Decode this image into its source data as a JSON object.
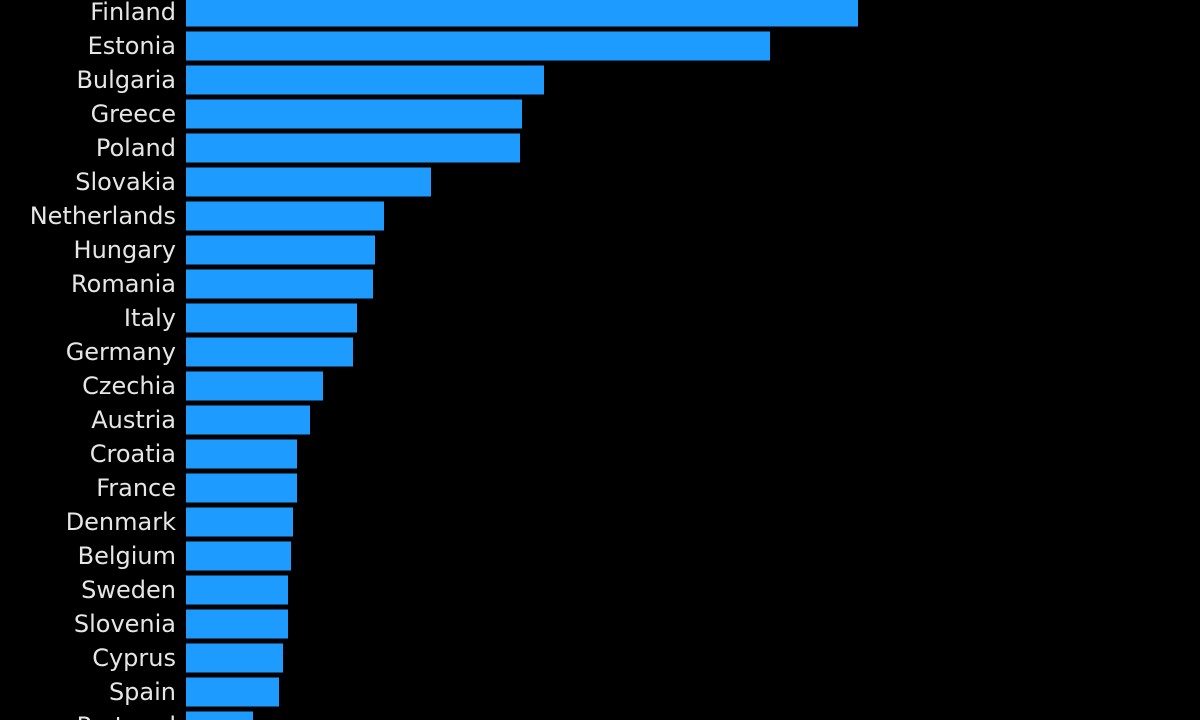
{
  "colors": {
    "background": "#000000",
    "bar": "#1e9bff",
    "label": "#e6e6e6"
  },
  "chart_data": {
    "type": "bar",
    "orientation": "horizontal",
    "categories": [
      "Finland",
      "Estonia",
      "Bulgaria",
      "Greece",
      "Poland",
      "Slovakia",
      "Netherlands",
      "Hungary",
      "Romania",
      "Italy",
      "Germany",
      "Czechia",
      "Austria",
      "Croatia",
      "France",
      "Denmark",
      "Belgium",
      "Sweden",
      "Slovenia",
      "Cyprus",
      "Spain",
      "Portugal"
    ],
    "values": [
      672,
      584,
      358,
      336,
      334,
      245,
      198,
      189,
      187,
      171,
      167,
      137,
      124,
      111,
      111,
      107,
      105,
      102,
      102,
      97,
      93,
      67
    ],
    "xlim": [
      0,
      680
    ],
    "grid": false,
    "legend": "none"
  }
}
